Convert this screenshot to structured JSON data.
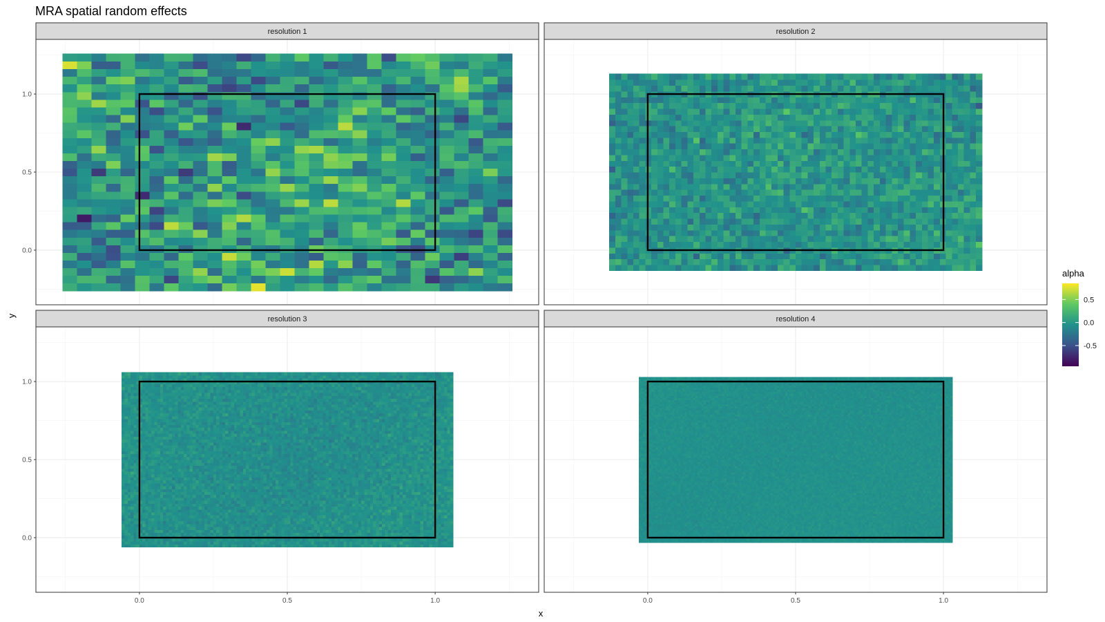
{
  "chart_data": {
    "type": "heatmap",
    "title": "MRA spatial random effects",
    "xlabel": "x",
    "ylabel": "y",
    "xlim": [
      -0.35,
      1.35
    ],
    "ylim": [
      -0.35,
      1.35
    ],
    "x_ticks": [
      0.0,
      0.5,
      1.0
    ],
    "y_ticks": [
      0.0,
      0.5,
      1.0
    ],
    "x_tick_labels": [
      "0.0",
      "0.5",
      "1.0"
    ],
    "y_tick_labels": [
      "0.0",
      "0.5",
      "1.0"
    ],
    "grid": true,
    "legend": {
      "title": "alpha",
      "position": "right",
      "range": [
        -0.95,
        0.85
      ],
      "ticks": [
        0.5,
        0.0,
        -0.5
      ],
      "tick_labels": [
        "0.5",
        "0.0",
        "-0.5"
      ],
      "colormap": "viridis",
      "colors": [
        "#440154",
        "#3b528b",
        "#21918c",
        "#5ec962",
        "#fde725"
      ]
    },
    "domain_box": {
      "x": [
        0,
        1
      ],
      "y": [
        0,
        1
      ]
    },
    "panels": [
      {
        "label": "resolution 1",
        "x_range": [
          -0.26,
          1.26
        ],
        "y_range": [
          -0.26,
          1.26
        ],
        "cols": 31,
        "rows": 31,
        "spread": 0.32,
        "mean": 0.0
      },
      {
        "label": "resolution 2",
        "x_range": [
          -0.13,
          1.13
        ],
        "y_range": [
          -0.13,
          1.13
        ],
        "cols": 62,
        "rows": 34,
        "spread": 0.16,
        "mean": -0.02
      },
      {
        "label": "resolution 3",
        "x_range": [
          -0.06,
          1.06
        ],
        "y_range": [
          -0.06,
          1.06
        ],
        "cols": 112,
        "rows": 60,
        "spread": 0.07,
        "mean": -0.04
      },
      {
        "label": "resolution 4",
        "x_range": [
          -0.03,
          1.03
        ],
        "y_range": [
          -0.03,
          1.03
        ],
        "cols": 150,
        "rows": 80,
        "spread": 0.03,
        "mean": -0.05
      }
    ]
  }
}
